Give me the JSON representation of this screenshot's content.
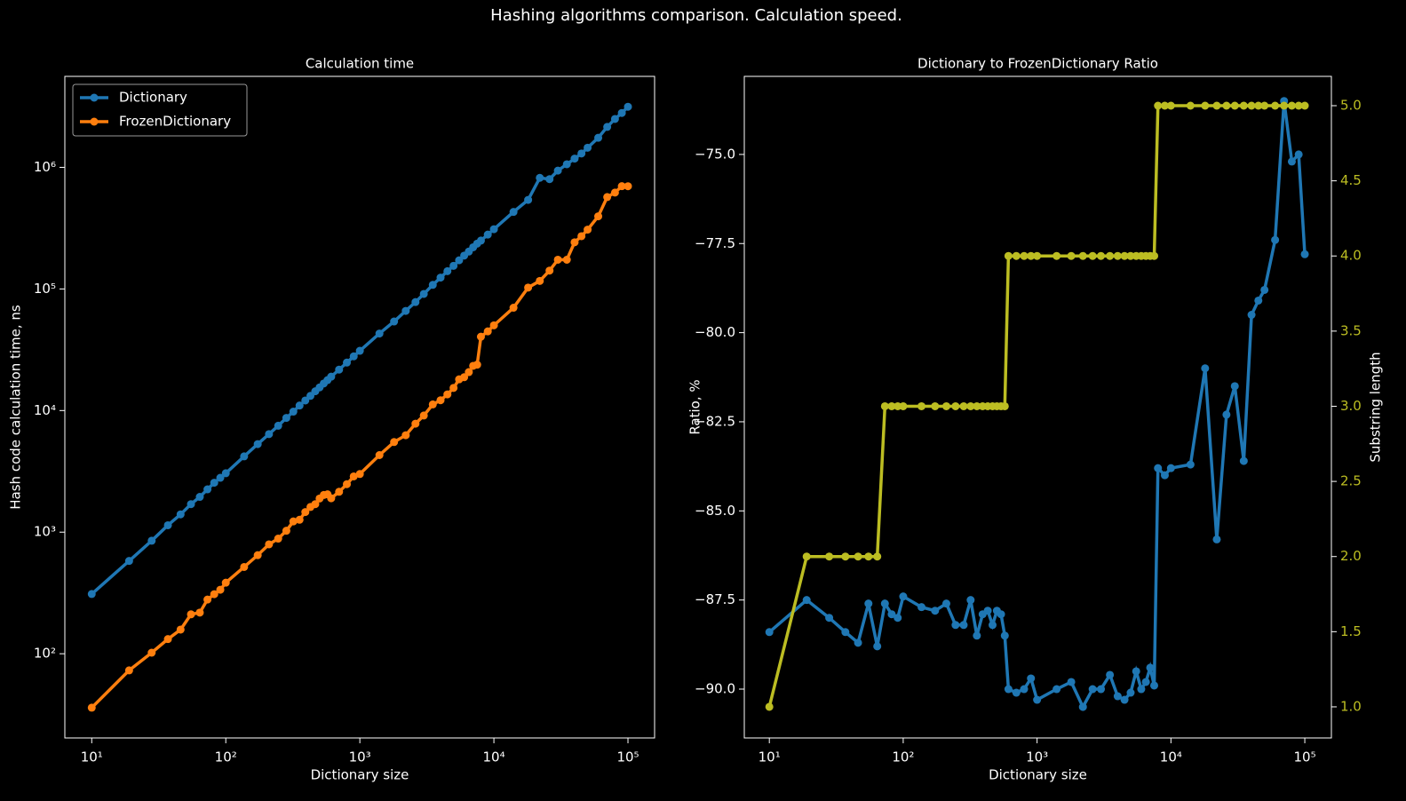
{
  "suptitle": "Hashing algorithms comparison. Calculation speed.",
  "chart_data": [
    {
      "type": "line",
      "title": "Calculation time",
      "xlabel": "Dictionary size",
      "ylabel": "Hash code calculation time, ns",
      "xscale": "log",
      "yscale": "log",
      "legend": "upper left",
      "xlim": [
        6.3,
        158000
      ],
      "ylim": [
        20.3,
        5600000
      ],
      "xticks": [
        {
          "value": 10,
          "label": "10¹"
        },
        {
          "value": 100,
          "label": "10²"
        },
        {
          "value": 1000,
          "label": "10³"
        },
        {
          "value": 10000,
          "label": "10⁴"
        },
        {
          "value": 100000,
          "label": "10⁵"
        }
      ],
      "yticks": [
        {
          "value": 100,
          "label": "10²"
        },
        {
          "value": 1000,
          "label": "10³"
        },
        {
          "value": 10000,
          "label": "10⁴"
        },
        {
          "value": 100000,
          "label": "10⁵"
        },
        {
          "value": 1000000,
          "label": "10⁶"
        }
      ],
      "x": [
        10,
        19,
        28,
        37,
        46,
        55,
        64,
        73,
        82,
        91,
        100,
        137,
        173,
        210,
        246,
        283,
        319,
        355,
        392,
        428,
        465,
        501,
        538,
        574,
        611,
        700,
        800,
        900,
        1000,
        1400,
        1800,
        2200,
        2600,
        3000,
        3500,
        4000,
        4500,
        5000,
        5500,
        6000,
        6500,
        7000,
        7500,
        8000,
        9000,
        10000,
        14000,
        18000,
        22000,
        26000,
        30000,
        35000,
        40000,
        45000,
        50000,
        60000,
        70000,
        80000,
        90000,
        100000
      ],
      "series": [
        {
          "name": "Dictionary",
          "color": "#1f77b4",
          "values": [
            310,
            580,
            850,
            1140,
            1400,
            1700,
            1950,
            2250,
            2550,
            2800,
            3050,
            4200,
            5300,
            6400,
            7500,
            8700,
            9800,
            11000,
            12100,
            13200,
            14400,
            15500,
            16700,
            17800,
            19000,
            21700,
            24800,
            27900,
            31000,
            43000,
            54000,
            66000,
            78000,
            91000,
            108000,
            124000,
            140000,
            155000,
            172000,
            188000,
            203000,
            220000,
            236000,
            250000,
            280000,
            310000,
            430000,
            540000,
            820000,
            800000,
            940000,
            1060000,
            1180000,
            1300000,
            1450000,
            1750000,
            2150000,
            2500000,
            2800000,
            3150000
          ]
        },
        {
          "name": "FrozenDictionary",
          "color": "#ff7f0e",
          "values": [
            36,
            73,
            102,
            132,
            158,
            211,
            218,
            279,
            309,
            336,
            384,
            517,
            647,
            794,
            885,
            1027,
            1225,
            1265,
            1464,
            1610,
            1699,
            1891,
            2021,
            2047,
            1900,
            2148,
            2480,
            2874,
            3007,
            4300,
            5508,
            6270,
            7800,
            9100,
            11232,
            12152,
            13580,
            15345,
            18060,
            18800,
            20706,
            23320,
            23836,
            40500,
            44800,
            50220,
            70090,
            102600,
            116440,
            141600,
            173900,
            173840,
            241900,
            271700,
            307400,
            395500,
            569750,
            620000,
            700000,
            699300
          ]
        }
      ]
    },
    {
      "type": "line",
      "title": "Dictionary to FrozenDictionary Ratio",
      "xlabel": "Dictionary size",
      "ylabel": "Ratio, %",
      "y2label": "Substring length",
      "xscale": "log",
      "xlim": [
        6.5,
        158000
      ],
      "ylim": [
        -91.37,
        -72.81
      ],
      "y2lim": [
        0.793,
        5.195
      ],
      "xticks": [
        {
          "value": 10,
          "label": "10¹"
        },
        {
          "value": 100,
          "label": "10²"
        },
        {
          "value": 1000,
          "label": "10³"
        },
        {
          "value": 10000,
          "label": "10⁴"
        },
        {
          "value": 100000,
          "label": "10⁵"
        }
      ],
      "yticks": [
        {
          "value": -90,
          "label": "−90.0"
        },
        {
          "value": -87.5,
          "label": "−87.5"
        },
        {
          "value": -85,
          "label": "−85.0"
        },
        {
          "value": -82.5,
          "label": "−82.5"
        },
        {
          "value": -80,
          "label": "−80.0"
        },
        {
          "value": -77.5,
          "label": "−77.5"
        },
        {
          "value": -75,
          "label": "−75.0"
        }
      ],
      "y2ticks": [
        {
          "value": 1,
          "label": "1.0"
        },
        {
          "value": 1.5,
          "label": "1.5"
        },
        {
          "value": 2,
          "label": "2.0"
        },
        {
          "value": 2.5,
          "label": "2.5"
        },
        {
          "value": 3,
          "label": "3.0"
        },
        {
          "value": 3.5,
          "label": "3.5"
        },
        {
          "value": 4,
          "label": "4.0"
        },
        {
          "value": 4.5,
          "label": "4.5"
        },
        {
          "value": 5,
          "label": "5.0"
        }
      ],
      "y2color": "#bcbd22",
      "x": [
        10,
        19,
        28,
        37,
        46,
        55,
        64,
        73,
        82,
        91,
        100,
        137,
        173,
        210,
        246,
        283,
        319,
        355,
        392,
        428,
        465,
        501,
        538,
        574,
        611,
        700,
        800,
        900,
        1000,
        1400,
        1800,
        2200,
        2600,
        3000,
        3500,
        4000,
        4500,
        5000,
        5500,
        6000,
        6500,
        7000,
        7500,
        8000,
        9000,
        10000,
        14000,
        18000,
        22000,
        26000,
        30000,
        35000,
        40000,
        45000,
        50000,
        60000,
        70000,
        80000,
        90000,
        100000
      ],
      "series": [
        {
          "color": "#1f77b4",
          "values": [
            -88.4,
            -87.5,
            -88.0,
            -88.4,
            -88.7,
            -87.6,
            -88.8,
            -87.6,
            -87.9,
            -88.0,
            -87.4,
            -87.7,
            -87.8,
            -87.6,
            -88.2,
            -88.2,
            -87.5,
            -88.5,
            -87.9,
            -87.8,
            -88.2,
            -87.8,
            -87.9,
            -88.5,
            -90.0,
            -90.1,
            -90.0,
            -89.7,
            -90.3,
            -90.0,
            -89.8,
            -90.5,
            -90.0,
            -90.0,
            -89.6,
            -90.2,
            -90.3,
            -90.1,
            -89.5,
            -90.0,
            -89.8,
            -89.4,
            -89.9,
            -83.8,
            -84.0,
            -83.8,
            -83.7,
            -81.0,
            -85.8,
            -82.3,
            -81.5,
            -83.6,
            -79.5,
            -79.1,
            -78.8,
            -77.4,
            -73.5,
            -75.2,
            -75.0,
            -77.8
          ]
        },
        {
          "color": "#bcbd22",
          "axis": "y2",
          "values": [
            1,
            2,
            2,
            2,
            2,
            2,
            2,
            3,
            3,
            3,
            3,
            3,
            3,
            3,
            3,
            3,
            3,
            3,
            3,
            3,
            3,
            3,
            3,
            3,
            4,
            4,
            4,
            4,
            4,
            4,
            4,
            4,
            4,
            4,
            4,
            4,
            4,
            4,
            4,
            4,
            4,
            4,
            4,
            5,
            5,
            5,
            5,
            5,
            5,
            5,
            5,
            5,
            5,
            5,
            5,
            5,
            5,
            5,
            5,
            5
          ]
        }
      ]
    }
  ]
}
